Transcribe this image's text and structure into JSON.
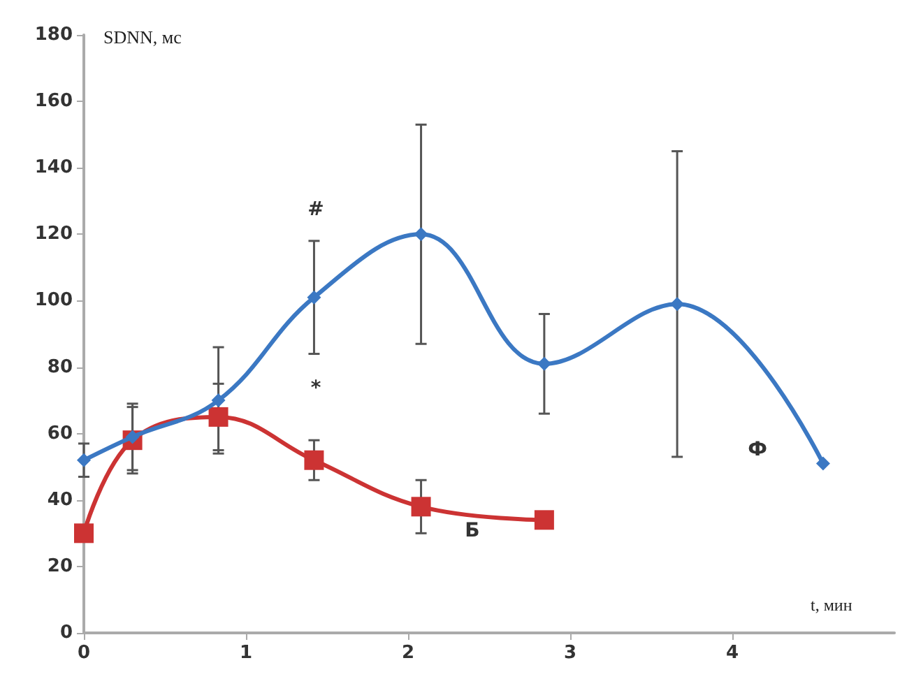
{
  "chart_data": {
    "type": "line",
    "xlabel": "t, мин",
    "ylabel": "SDNN, мс",
    "xlim": [
      0,
      5
    ],
    "xticks": [
      0,
      1,
      2,
      3,
      4
    ],
    "ylim": [
      0,
      180
    ],
    "yticks": [
      0,
      20,
      40,
      60,
      80,
      100,
      120,
      140,
      160,
      180
    ],
    "grid": false,
    "series": [
      {
        "color": "#3b78c3",
        "marker": "diamond",
        "x": [
          0,
          0.3,
          0.83,
          1.42,
          2.08,
          2.84,
          3.66,
          4.56
        ],
        "values": [
          52,
          59,
          70,
          101,
          120,
          81,
          99,
          51
        ],
        "errors": [
          5,
          10,
          16,
          17,
          33,
          15,
          46,
          null
        ]
      },
      {
        "color": "#cc3333",
        "marker": "square",
        "x": [
          0,
          0.3,
          0.83,
          1.42,
          2.08,
          2.84
        ],
        "values": [
          30,
          58,
          65,
          52,
          38,
          34
        ],
        "errors": [
          null,
          10,
          10,
          6,
          8,
          null
        ]
      }
    ],
    "annotations": [
      "#",
      "*",
      "Б",
      "Ф"
    ]
  }
}
